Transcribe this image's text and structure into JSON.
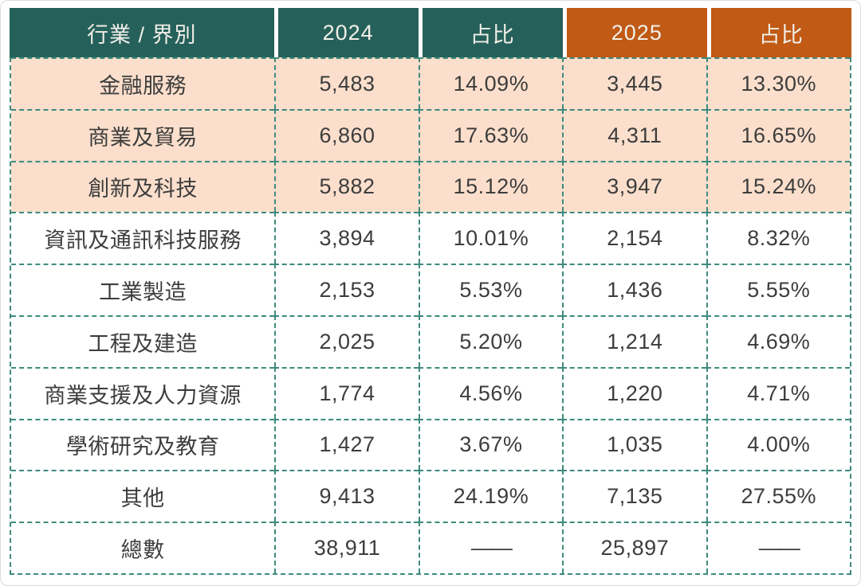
{
  "table": {
    "header": [
      {
        "label": "行業 / 界別",
        "theme": "teal"
      },
      {
        "label": "2024",
        "theme": "teal"
      },
      {
        "label": "占比",
        "theme": "teal"
      },
      {
        "label": "2025",
        "theme": "orange"
      },
      {
        "label": "占比",
        "theme": "orange"
      }
    ],
    "rows": [
      {
        "category": "金融服務",
        "v2024": "5,483",
        "p2024": "14.09%",
        "v2025": "3,445",
        "p2025": "13.30%",
        "highlight": true
      },
      {
        "category": "商業及貿易",
        "v2024": "6,860",
        "p2024": "17.63%",
        "v2025": "4,311",
        "p2025": "16.65%",
        "highlight": true
      },
      {
        "category": "創新及科技",
        "v2024": "5,882",
        "p2024": "15.12%",
        "v2025": "3,947",
        "p2025": "15.24%",
        "highlight": true
      },
      {
        "category": "資訊及通訊科技服務",
        "v2024": "3,894",
        "p2024": "10.01%",
        "v2025": "2,154",
        "p2025": "8.32%",
        "highlight": false
      },
      {
        "category": "工業製造",
        "v2024": "2,153",
        "p2024": "5.53%",
        "v2025": "1,436",
        "p2025": "5.55%",
        "highlight": false
      },
      {
        "category": "工程及建造",
        "v2024": "2,025",
        "p2024": "5.20%",
        "v2025": "1,214",
        "p2025": "4.69%",
        "highlight": false
      },
      {
        "category": "商業支援及人力資源",
        "v2024": "1,774",
        "p2024": "4.56%",
        "v2025": "1,220",
        "p2025": "4.71%",
        "highlight": false
      },
      {
        "category": "學術研究及教育",
        "v2024": "1,427",
        "p2024": "3.67%",
        "v2025": "1,035",
        "p2025": "4.00%",
        "highlight": false
      },
      {
        "category": "其他",
        "v2024": "9,413",
        "p2024": "24.19%",
        "v2025": "7,135",
        "p2025": "27.55%",
        "highlight": false
      },
      {
        "category": "總數",
        "v2024": "38,911",
        "p2024": "——",
        "v2025": "25,897",
        "p2025": "——",
        "highlight": false
      }
    ]
  },
  "colors": {
    "header_teal": "#25615a",
    "header_orange": "#c05a15",
    "row_highlight_peach": "#fbdfcc",
    "dashed_border": "#3d8a7d",
    "body_text": "#3d3d3d",
    "header_text": "#f2efe8"
  },
  "chart_data": {
    "type": "table",
    "title": "行業 / 界別 2024 vs 2025",
    "columns": [
      "行業 / 界別",
      "2024",
      "占比",
      "2025",
      "占比"
    ],
    "rows": [
      [
        "金融服務",
        5483,
        "14.09%",
        3445,
        "13.30%"
      ],
      [
        "商業及貿易",
        6860,
        "17.63%",
        4311,
        "16.65%"
      ],
      [
        "創新及科技",
        5882,
        "15.12%",
        3947,
        "15.24%"
      ],
      [
        "資訊及通訊科技服務",
        3894,
        "10.01%",
        2154,
        "8.32%"
      ],
      [
        "工業製造",
        2153,
        "5.53%",
        1436,
        "5.55%"
      ],
      [
        "工程及建造",
        2025,
        "5.20%",
        1214,
        "4.69%"
      ],
      [
        "商業支援及人力資源",
        1774,
        "4.56%",
        1220,
        "4.71%"
      ],
      [
        "學術研究及教育",
        1427,
        "3.67%",
        1035,
        "4.00%"
      ],
      [
        "其他",
        9413,
        "24.19%",
        7135,
        "27.55%"
      ],
      [
        "總數",
        38911,
        null,
        25897,
        null
      ]
    ],
    "layout_hints": {
      "highlighted_rows": [
        0,
        1,
        2
      ],
      "header_color_groups": {
        "teal_columns": [
          0,
          1,
          2
        ],
        "orange_columns": [
          3,
          4
        ]
      }
    }
  }
}
